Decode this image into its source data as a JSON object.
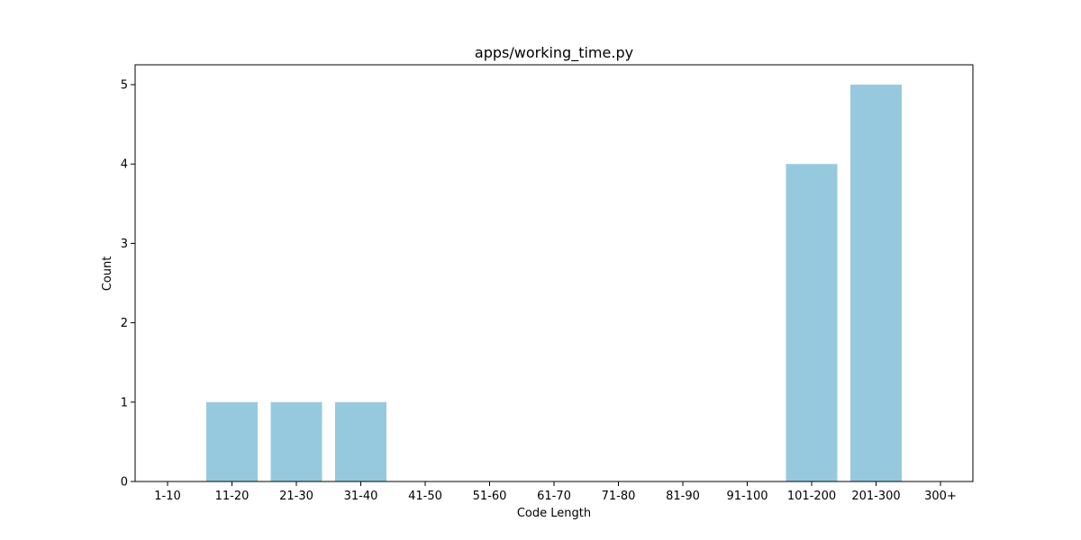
{
  "chart_data": {
    "type": "bar",
    "title": "apps/working_time.py",
    "xlabel": "Code Length",
    "ylabel": "Count",
    "categories": [
      "1-10",
      "11-20",
      "21-30",
      "31-40",
      "41-50",
      "51-60",
      "61-70",
      "71-80",
      "81-90",
      "91-100",
      "101-200",
      "201-300",
      "300+"
    ],
    "values": [
      0,
      1,
      1,
      1,
      0,
      0,
      0,
      0,
      0,
      0,
      4,
      5,
      0
    ],
    "ylim": [
      0,
      5.25
    ],
    "yticks": [
      0,
      1,
      2,
      3,
      4,
      5
    ],
    "grid": false,
    "bar_color": "#96c9de",
    "legend": "none"
  }
}
